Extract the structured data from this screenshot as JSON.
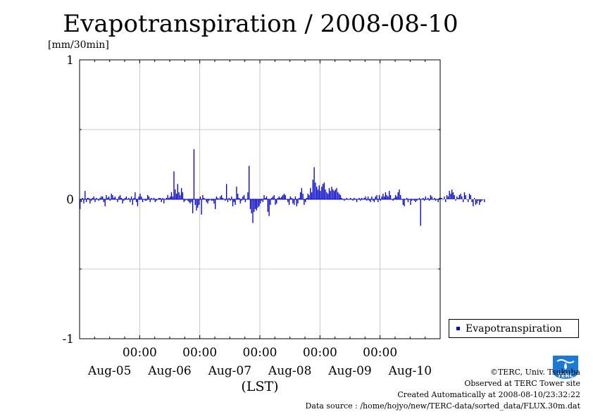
{
  "title": "Evapotranspiration / 2008-08-10",
  "chart_data": {
    "type": "bar",
    "title": "Evapotranspiration / 2008-08-10",
    "ylabel": "[mm/30min]",
    "xlabel": "(LST)",
    "ylim": [
      -1,
      1
    ],
    "yticks": [
      "1",
      "0",
      "-1"
    ],
    "x_time_labels": [
      "00:00",
      "00:00",
      "00:00",
      "00:00",
      "00:00"
    ],
    "x_date_labels": [
      "Aug-05",
      "Aug-06",
      "Aug-07",
      "Aug-08",
      "Aug-09",
      "Aug-10"
    ],
    "x_unit": "days (Aug-05 00:00 .. Aug-10 24:00, 30-min steps)",
    "grid": true,
    "legend_position": "right",
    "color": "#0000cc",
    "series": [
      {
        "name": "Evapotranspiration",
        "values": [
          -0.07,
          -0.02,
          0.01,
          -0.03,
          0.06,
          -0.02,
          0.01,
          0.01,
          -0.03,
          -0.01,
          0.01,
          0.02,
          -0.02,
          0.01,
          0.0,
          -0.01,
          0.01,
          0.02,
          0.02,
          -0.02,
          -0.05,
          0.03,
          0.01,
          0.02,
          -0.01,
          0.04,
          0.03,
          0.01,
          0.02,
          0.0,
          -0.02,
          0.02,
          0.03,
          0.01,
          -0.03,
          -0.01,
          0.01,
          0.02,
          0.0,
          0.01,
          -0.02,
          0.02,
          -0.04,
          0.01,
          0.05,
          -0.02,
          -0.05,
          0.02,
          0.04,
          0.02,
          -0.02,
          0.0,
          -0.01,
          -0.01,
          0.03,
          0.02,
          -0.02,
          0.01,
          0.0,
          0.01,
          -0.02,
          -0.01,
          0.0,
          0.01,
          0.01,
          -0.02,
          0.01,
          -0.03,
          0.0,
          0.01,
          0.03,
          0.01,
          0.02,
          0.05,
          0.02,
          0.2,
          0.07,
          0.04,
          0.11,
          0.05,
          0.03,
          0.08,
          0.05,
          -0.02,
          -0.01,
          0.0,
          -0.01,
          -0.02,
          -0.03,
          -0.02,
          -0.1,
          0.36,
          -0.04,
          -0.08,
          -0.06,
          -0.04,
          0.02,
          -0.11,
          0.03,
          0.01,
          0.0,
          -0.02,
          -0.03,
          -0.01,
          0.0,
          -0.01,
          -0.01,
          -0.03,
          -0.07,
          0.02,
          0.01,
          0.0,
          0.02,
          0.03,
          0.01,
          0.0,
          -0.01,
          0.11,
          -0.02,
          0.01,
          -0.01,
          0.02,
          -0.05,
          -0.02,
          -0.04,
          0.09,
          0.04,
          0.01,
          -0.03,
          -0.01,
          0.02,
          0.03,
          -0.02,
          0.0,
          0.05,
          0.24,
          -0.07,
          -0.1,
          -0.17,
          -0.09,
          -0.07,
          -0.08,
          -0.06,
          -0.05,
          -0.03,
          -0.01,
          -0.02,
          0.03,
          0.01,
          0.02,
          -0.09,
          -0.12,
          -0.04,
          0.01,
          0.02,
          0.03,
          -0.04,
          -0.03,
          0.01,
          0.02,
          0.01,
          0.02,
          0.03,
          0.04,
          0.03,
          0.0,
          -0.02,
          -0.04,
          0.02,
          0.01,
          -0.03,
          -0.04,
          0.02,
          -0.05,
          -0.03,
          0.01,
          0.05,
          0.08,
          0.04,
          -0.04,
          -0.02,
          0.01,
          0.04,
          0.03,
          0.08,
          0.05,
          0.14,
          0.23,
          0.12,
          0.09,
          0.07,
          0.1,
          0.06,
          0.09,
          0.11,
          0.12,
          0.07,
          0.05,
          0.04,
          0.08,
          0.06,
          0.09,
          0.07,
          0.06,
          0.07,
          0.08,
          0.05,
          0.04,
          0.03,
          0.01,
          0.0,
          -0.01,
          0.0,
          0.01,
          0.0,
          0.0,
          0.01,
          0.0,
          -0.01,
          0.01,
          0.0,
          -0.02,
          0.0,
          0.01,
          -0.01,
          0.01,
          0.0,
          0.01,
          0.02,
          -0.01,
          0.02,
          -0.01,
          -0.02,
          0.02,
          -0.01,
          -0.02,
          0.02,
          0.03,
          -0.02,
          0.03,
          -0.01,
          0.02,
          0.04,
          0.02,
          0.05,
          0.03,
          0.02,
          0.06,
          0.03,
          0.0,
          -0.01,
          0.01,
          0.03,
          0.02,
          0.05,
          0.07,
          0.03,
          0.0,
          -0.04,
          -0.05,
          0.0,
          0.01,
          -0.02,
          0.0,
          -0.04,
          -0.01,
          0.0,
          -0.01,
          -0.02,
          -0.01,
          0.0,
          0.01,
          -0.19,
          0.0,
          0.01,
          -0.01,
          0.02,
          0.0,
          0.01,
          -0.01,
          0.03,
          0.02,
          0.0,
          0.01,
          -0.01,
          0.0,
          -0.02,
          0.01,
          0.01,
          0.01,
          0.0,
          0.02,
          -0.02,
          0.03,
          0.02,
          0.06,
          0.04,
          0.07,
          0.05,
          0.03,
          -0.01,
          0.02,
          0.01,
          0.03,
          0.04,
          0.02,
          -0.02,
          0.05,
          0.03,
          0.0,
          -0.02,
          0.04,
          0.03,
          -0.02,
          -0.05,
          0.01,
          -0.04,
          -0.03,
          -0.01,
          -0.04,
          -0.02,
          -0.01,
          0.0,
          -0.02
        ]
      }
    ]
  },
  "legend": {
    "label": "Evapotranspiration"
  },
  "credits": {
    "line1": "©TERC, Univ. Tsukuba",
    "line2": "Observed at TERC Tower site",
    "line3": "Created Automatically at 2008-08-10/23:32:22",
    "line4": "Data source : /home/hojyo/new/TERC-data/sorted_data/FLUX.30m.dat"
  },
  "logo": {
    "icon": "terc-logo-icon",
    "text": "TERC",
    "color": "#1a7ad6"
  }
}
